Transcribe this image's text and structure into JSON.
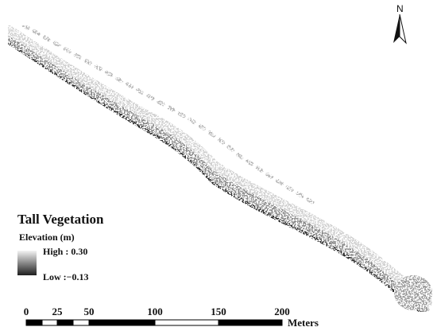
{
  "north_arrow": {
    "label": "N",
    "icon": "north-arrow-icon"
  },
  "legend": {
    "title": "Tall Vegetation",
    "subtitle": "Elevation (m)",
    "high_label": "High : 0.30",
    "low_label": "Low :−0.13",
    "high_value": 0.3,
    "low_value": -0.13,
    "ramp_colors": [
      "#f4f4f4",
      "#1e1e1e"
    ]
  },
  "scale_bar": {
    "ticks": [
      "0",
      "25",
      "50",
      "100",
      "150",
      "200"
    ],
    "units": "Meters"
  },
  "colors": {
    "vegetation_light": "#d9d9d9",
    "vegetation_dark": "#2e2e2e",
    "background": "#ffffff"
  }
}
